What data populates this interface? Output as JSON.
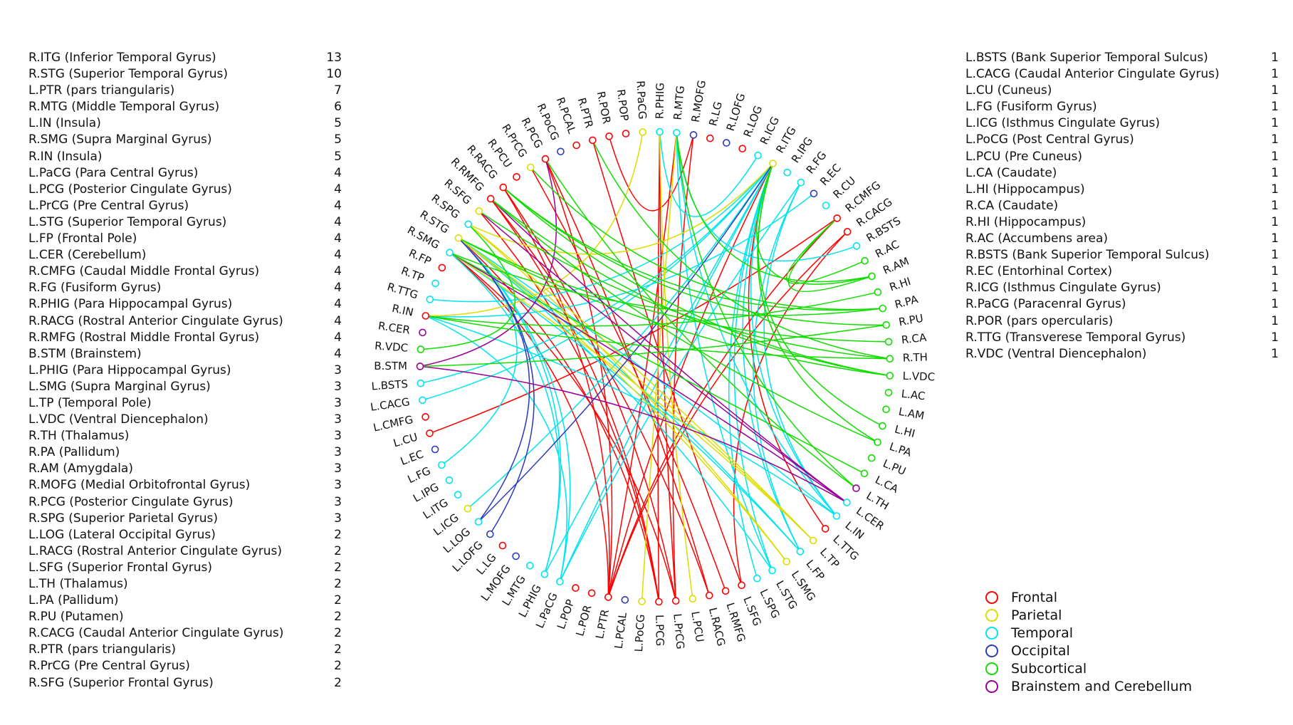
{
  "left_list": [
    {
      "label": "R.ITG (Inferior Temporal Gyrus)",
      "count": "13"
    },
    {
      "label": "R.STG (Superior Temporal Gyrus)",
      "count": "10"
    },
    {
      "label": "L.PTR (pars triangularis)",
      "count": "7"
    },
    {
      "label": "R.MTG (Middle Temporal Gyrus)",
      "count": "6"
    },
    {
      "label": "L.IN (Insula)",
      "count": "5"
    },
    {
      "label": "R.SMG (Supra Marginal Gyrus)",
      "count": "5"
    },
    {
      "label": "R.IN (Insula)",
      "count": "5"
    },
    {
      "label": "L.PaCG (Para Central Gyrus)",
      "count": "4"
    },
    {
      "label": "L.PCG (Posterior Cingulate Gyrus)",
      "count": "4"
    },
    {
      "label": "L.PrCG (Pre Central Gyrus)",
      "count": "4"
    },
    {
      "label": "L.STG (Superior Temporal Gyrus)",
      "count": "4"
    },
    {
      "label": "L.FP (Frontal Pole)",
      "count": "4"
    },
    {
      "label": "L.CER (Cerebellum)",
      "count": "4"
    },
    {
      "label": "R.CMFG (Caudal Middle Frontal Gyrus)",
      "count": "4"
    },
    {
      "label": "R.FG (Fusiform Gyrus)",
      "count": "4"
    },
    {
      "label": "R.PHIG (Para Hippocampal Gyrus)",
      "count": "4"
    },
    {
      "label": "R.RACG (Rostral Anterior Cingulate Gyrus)",
      "count": "4"
    },
    {
      "label": "R.RMFG (Rostral Middle Frontal Gyrus)",
      "count": "4"
    },
    {
      "label": "B.STM (Brainstem)",
      "count": "4"
    },
    {
      "label": "L.PHIG (Para Hippocampal Gyrus)",
      "count": "3"
    },
    {
      "label": "L.SMG (Supra Marginal Gyrus)",
      "count": "3"
    },
    {
      "label": "L.TP (Temporal Pole)",
      "count": "3"
    },
    {
      "label": "L.VDC (Ventral Diencephalon)",
      "count": "3"
    },
    {
      "label": "R.TH (Thalamus)",
      "count": "3"
    },
    {
      "label": "R.PA (Pallidum)",
      "count": "3"
    },
    {
      "label": "R.AM (Amygdala)",
      "count": "3"
    },
    {
      "label": "R.MOFG (Medial Orbitofrontal Gyrus)",
      "count": "3"
    },
    {
      "label": "R.PCG (Posterior Cingulate Gyrus)",
      "count": "3"
    },
    {
      "label": "R.SPG (Superior Parietal Gyrus)",
      "count": "3"
    },
    {
      "label": "L.LOG (Lateral Occipital Gyrus)",
      "count": "2"
    },
    {
      "label": "L.RACG (Rostral Anterior Cingulate Gyrus)",
      "count": "2"
    },
    {
      "label": "L.SFG (Superior Frontal Gyrus)",
      "count": "2"
    },
    {
      "label": "L.TH (Thalamus)",
      "count": "2"
    },
    {
      "label": "L.PA (Pallidum)",
      "count": "2"
    },
    {
      "label": "R.PU (Putamen)",
      "count": "2"
    },
    {
      "label": "R.CACG (Caudal Anterior Cingulate Gyrus)",
      "count": "2"
    },
    {
      "label": "R.PTR (pars triangularis)",
      "count": "2"
    },
    {
      "label": "R.PrCG (Pre Central Gyrus)",
      "count": "2"
    },
    {
      "label": "R.SFG (Superior Frontal Gyrus)",
      "count": "2"
    }
  ],
  "right_list": [
    {
      "label": "L.BSTS (Bank Superior Temporal Sulcus)",
      "count": "1"
    },
    {
      "label": "L.CACG (Caudal Anterior Cingulate Gyrus)",
      "count": "1"
    },
    {
      "label": "L.CU (Cuneus)",
      "count": "1"
    },
    {
      "label": "L.FG (Fusiform Gyrus)",
      "count": "1"
    },
    {
      "label": "L.ICG (Isthmus Cingulate Gyrus)",
      "count": "1"
    },
    {
      "label": "L.PoCG (Post Central Gyrus)",
      "count": "1"
    },
    {
      "label": "L.PCU (Pre Cuneus)",
      "count": "1"
    },
    {
      "label": "L.CA (Caudate)",
      "count": "1"
    },
    {
      "label": "L.HI (Hippocampus)",
      "count": "1"
    },
    {
      "label": "R.CA (Caudate)",
      "count": "1"
    },
    {
      "label": "R.HI (Hippocampus)",
      "count": "1"
    },
    {
      "label": "R.AC (Accumbens area)",
      "count": "1"
    },
    {
      "label": "R.BSTS (Bank Superior Temporal Sulcus)",
      "count": "1"
    },
    {
      "label": "R.EC (Entorhinal Cortex)",
      "count": "1"
    },
    {
      "label": "R.ICG (Isthmus Cingulate Gyrus)",
      "count": "1"
    },
    {
      "label": "R.PaCG (Paracenral Gyrus)",
      "count": "1"
    },
    {
      "label": "R.POR (pars opercularis)",
      "count": "1"
    },
    {
      "label": "R.TTG (Transverese Temporal Gyrus)",
      "count": "1"
    },
    {
      "label": "R.VDC (Ventral Diencephalon)",
      "count": "1"
    }
  ],
  "legend": [
    {
      "key": "F",
      "label": "Frontal",
      "color": "#ff0000"
    },
    {
      "key": "P",
      "label": "Parietal",
      "color": "#dddd00"
    },
    {
      "key": "T",
      "label": "Temporal",
      "color": "#00e5ee"
    },
    {
      "key": "O",
      "label": "Occipital",
      "color": "#2b3bbb"
    },
    {
      "key": "S",
      "label": "Subcortical",
      "color": "#11dd00"
    },
    {
      "key": "B",
      "label": "Brainstem and Cerebellum",
      "color": "#990099"
    }
  ],
  "nodes": [
    {
      "label": "R.PaCG",
      "type": "P"
    },
    {
      "label": "R.PHIG",
      "type": "T"
    },
    {
      "label": "R.MTG",
      "type": "T"
    },
    {
      "label": "R.MOFG",
      "type": "O"
    },
    {
      "label": "R.LG",
      "type": "F"
    },
    {
      "label": "R.LOFG",
      "type": "O"
    },
    {
      "label": "R.LOG",
      "type": "F"
    },
    {
      "label": "R.ICG",
      "type": "T"
    },
    {
      "label": "R.ITG",
      "type": "P"
    },
    {
      "label": "R.IPG",
      "type": "T"
    },
    {
      "label": "R.FG",
      "type": "T"
    },
    {
      "label": "R.EC",
      "type": "O"
    },
    {
      "label": "R.CU",
      "type": "T"
    },
    {
      "label": "R.CMFG",
      "type": "F"
    },
    {
      "label": "R.CACG",
      "type": "F"
    },
    {
      "label": "R.BSTS",
      "type": "T"
    },
    {
      "label": "R.AC",
      "type": "S"
    },
    {
      "label": "R.AM",
      "type": "S"
    },
    {
      "label": "R.HI",
      "type": "S"
    },
    {
      "label": "R.PA",
      "type": "S"
    },
    {
      "label": "R.PU",
      "type": "S"
    },
    {
      "label": "R.CA",
      "type": "S"
    },
    {
      "label": "R.TH",
      "type": "S"
    },
    {
      "label": "L.VDC",
      "type": "S"
    },
    {
      "label": "L.AC",
      "type": "S"
    },
    {
      "label": "L.AM",
      "type": "S"
    },
    {
      "label": "L.HI",
      "type": "S"
    },
    {
      "label": "L.PA",
      "type": "S"
    },
    {
      "label": "L.PU",
      "type": "S"
    },
    {
      "label": "L.CA",
      "type": "S"
    },
    {
      "label": "L.TH",
      "type": "B"
    },
    {
      "label": "L.CER",
      "type": "T"
    },
    {
      "label": "L.IN",
      "type": "T"
    },
    {
      "label": "L.TTG",
      "type": "F"
    },
    {
      "label": "L.TP",
      "type": "P"
    },
    {
      "label": "L.FP",
      "type": "T"
    },
    {
      "label": "L.SMG",
      "type": "P"
    },
    {
      "label": "L.STG",
      "type": "T"
    },
    {
      "label": "L.SPG",
      "type": "T"
    },
    {
      "label": "L.SFG",
      "type": "F"
    },
    {
      "label": "L.RMFG",
      "type": "F"
    },
    {
      "label": "L.RACG",
      "type": "F"
    },
    {
      "label": "L.PCU",
      "type": "P"
    },
    {
      "label": "L.PrCG",
      "type": "F"
    },
    {
      "label": "L.PCG",
      "type": "F"
    },
    {
      "label": "L.PoCG",
      "type": "P"
    },
    {
      "label": "L.PCAL",
      "type": "O"
    },
    {
      "label": "L.PTR",
      "type": "F"
    },
    {
      "label": "L.POR",
      "type": "F"
    },
    {
      "label": "L.POP",
      "type": "F"
    },
    {
      "label": "L.PaCG",
      "type": "T"
    },
    {
      "label": "L.PHIG",
      "type": "T"
    },
    {
      "label": "L.MTG",
      "type": "T"
    },
    {
      "label": "L.MOFG",
      "type": "O"
    },
    {
      "label": "L.LG",
      "type": "F"
    },
    {
      "label": "L.LOFG",
      "type": "O"
    },
    {
      "label": "L.LOG",
      "type": "T"
    },
    {
      "label": "L.ICG",
      "type": "P"
    },
    {
      "label": "L.ITG",
      "type": "T"
    },
    {
      "label": "L.IPG",
      "type": "T"
    },
    {
      "label": "L.FG",
      "type": "T"
    },
    {
      "label": "L.EC",
      "type": "O"
    },
    {
      "label": "L.CU",
      "type": "F"
    },
    {
      "label": "L.CMFG",
      "type": "F"
    },
    {
      "label": "L.CACG",
      "type": "T"
    },
    {
      "label": "L.BSTS",
      "type": "T"
    },
    {
      "label": "B.STM",
      "type": "B"
    },
    {
      "label": "R.VDC",
      "type": "S"
    },
    {
      "label": "R.CER",
      "type": "B"
    },
    {
      "label": "R.IN",
      "type": "F"
    },
    {
      "label": "R.TTG",
      "type": "T"
    },
    {
      "label": "R.TP",
      "type": "T"
    },
    {
      "label": "R.FP",
      "type": "F"
    },
    {
      "label": "R.SMG",
      "type": "T"
    },
    {
      "label": "R.STG",
      "type": "P"
    },
    {
      "label": "R.SPG",
      "type": "T"
    },
    {
      "label": "R.SFG",
      "type": "P"
    },
    {
      "label": "R.RMFG",
      "type": "F"
    },
    {
      "label": "R.RACG",
      "type": "F"
    },
    {
      "label": "R.PCU",
      "type": "F"
    },
    {
      "label": "R.PrCG",
      "type": "P"
    },
    {
      "label": "R.PCG",
      "type": "F"
    },
    {
      "label": "R.PoCG",
      "type": "O"
    },
    {
      "label": "R.PCAL",
      "type": "F"
    },
    {
      "label": "R.PTR",
      "type": "F"
    },
    {
      "label": "R.POR",
      "type": "F"
    },
    {
      "label": "R.POP",
      "type": "F"
    }
  ],
  "edges": [
    [
      "L.PTR",
      "R.MTG",
      "F"
    ],
    [
      "L.PTR",
      "R.ITG",
      "F"
    ],
    [
      "L.PTR",
      "R.CMFG",
      "F"
    ],
    [
      "L.PTR",
      "R.CACG",
      "F"
    ],
    [
      "L.PTR",
      "R.PCG",
      "F"
    ],
    [
      "L.PTR",
      "R.RACG",
      "F"
    ],
    [
      "L.PTR",
      "R.SMG",
      "F"
    ],
    [
      "L.PCG",
      "R.PHIG",
      "F"
    ],
    [
      "L.PCG",
      "R.RMFG",
      "F"
    ],
    [
      "L.PCG",
      "R.SFG",
      "F"
    ],
    [
      "L.PCG",
      "R.STG",
      "F"
    ],
    [
      "L.PrCG",
      "R.PHIG",
      "F"
    ],
    [
      "L.PrCG",
      "R.MOFG",
      "F"
    ],
    [
      "L.PrCG",
      "R.RACG",
      "F"
    ],
    [
      "L.PrCG",
      "R.SMG",
      "F"
    ],
    [
      "L.RACG",
      "R.PCG",
      "F"
    ],
    [
      "L.RACG",
      "R.RMFG",
      "F"
    ],
    [
      "L.SFG",
      "R.CACG",
      "F"
    ],
    [
      "L.SFG",
      "R.PTR",
      "F"
    ],
    [
      "L.RMFG",
      "R.PrCG",
      "F"
    ],
    [
      "L.CU",
      "R.CMFG",
      "F"
    ],
    [
      "L.TTG",
      "R.ITG",
      "F"
    ],
    [
      "R.POR",
      "R.MOFG",
      "F"
    ],
    [
      "L.FP",
      "R.ITG",
      "T"
    ],
    [
      "L.FP",
      "R.SMG",
      "T"
    ],
    [
      "L.FP",
      "R.STG",
      "T"
    ],
    [
      "L.FP",
      "R.FG",
      "T"
    ],
    [
      "L.IN",
      "R.ITG",
      "T"
    ],
    [
      "L.IN",
      "R.STG",
      "T"
    ],
    [
      "L.IN",
      "R.IN",
      "T"
    ],
    [
      "L.IN",
      "R.FG",
      "T"
    ],
    [
      "L.IN",
      "R.MTG",
      "T"
    ],
    [
      "L.STG",
      "R.ITG",
      "T"
    ],
    [
      "L.STG",
      "R.STG",
      "T"
    ],
    [
      "L.STG",
      "R.MTG",
      "T"
    ],
    [
      "L.PHIG",
      "R.ITG",
      "T"
    ],
    [
      "L.PHIG",
      "R.STG",
      "T"
    ],
    [
      "L.PHIG",
      "R.SMG",
      "T"
    ],
    [
      "L.PaCG",
      "R.ITG",
      "T"
    ],
    [
      "L.PaCG",
      "R.STG",
      "T"
    ],
    [
      "L.PaCG",
      "R.IN",
      "T"
    ],
    [
      "L.PaCG",
      "R.FG",
      "T"
    ],
    [
      "L.SPG",
      "R.ITG",
      "T"
    ],
    [
      "L.BSTS",
      "R.ITG",
      "T"
    ],
    [
      "L.CACG",
      "R.ITG",
      "T"
    ],
    [
      "L.FG",
      "R.STG",
      "T"
    ],
    [
      "L.ICG",
      "R.ITG",
      "T"
    ],
    [
      "R.BSTS",
      "R.MTG",
      "T"
    ],
    [
      "R.ICG",
      "R.PHIG",
      "T"
    ],
    [
      "R.EC",
      "R.IN",
      "T"
    ],
    [
      "R.TTG",
      "R.ITG",
      "T"
    ],
    [
      "L.TP",
      "R.STG",
      "P"
    ],
    [
      "L.TP",
      "R.SMG",
      "P"
    ],
    [
      "L.TP",
      "R.SPG",
      "P"
    ],
    [
      "L.SMG",
      "R.STG",
      "P"
    ],
    [
      "L.SMG",
      "R.SPG",
      "P"
    ],
    [
      "L.PoCG",
      "R.MTG",
      "P"
    ],
    [
      "L.PCU",
      "R.PHIG",
      "P"
    ],
    [
      "R.PaCG",
      "R.IN",
      "P"
    ],
    [
      "R.SPG",
      "R.ITG",
      "P"
    ],
    [
      "L.LOG",
      "R.ITG",
      "O"
    ],
    [
      "L.LOG",
      "R.STG",
      "O"
    ],
    [
      "L.LOFG",
      "R.STG",
      "O"
    ],
    [
      "L.CER",
      "R.SMG",
      "B"
    ],
    [
      "L.CER",
      "R.RMFG",
      "B"
    ],
    [
      "L.CER",
      "R.SFG",
      "B"
    ],
    [
      "L.CER",
      "B.STM",
      "B"
    ],
    [
      "B.STM",
      "R.PCG",
      "B"
    ],
    [
      "L.VDC",
      "R.RMFG",
      "S"
    ],
    [
      "L.VDC",
      "R.RACG",
      "S"
    ],
    [
      "L.VDC",
      "R.STG",
      "S"
    ],
    [
      "R.TH",
      "R.IN",
      "S"
    ],
    [
      "R.TH",
      "R.PTR",
      "S"
    ],
    [
      "R.TH",
      "R.SFG",
      "S"
    ],
    [
      "R.PA",
      "R.RACG",
      "S"
    ],
    [
      "R.PA",
      "R.PrCG",
      "S"
    ],
    [
      "R.PA",
      "R.SMG",
      "S"
    ],
    [
      "R.AM",
      "R.MTG",
      "S"
    ],
    [
      "R.AM",
      "R.CMFG",
      "S"
    ],
    [
      "R.AM",
      "R.ITG",
      "S"
    ],
    [
      "L.TH",
      "R.PCG",
      "S"
    ],
    [
      "L.TH",
      "R.MTG",
      "S"
    ],
    [
      "L.PA",
      "R.RMFG",
      "S"
    ],
    [
      "L.PA",
      "R.ITG",
      "S"
    ],
    [
      "R.PU",
      "R.RACG",
      "S"
    ],
    [
      "R.PU",
      "B.STM",
      "S"
    ],
    [
      "L.CA",
      "R.SMG",
      "S"
    ],
    [
      "L.HI",
      "R.ITG",
      "S"
    ],
    [
      "R.CA",
      "R.STG",
      "S"
    ],
    [
      "R.HI",
      "R.IN",
      "S"
    ],
    [
      "R.AC",
      "R.CMFG",
      "S"
    ],
    [
      "R.VDC",
      "R.SPG",
      "S"
    ]
  ]
}
